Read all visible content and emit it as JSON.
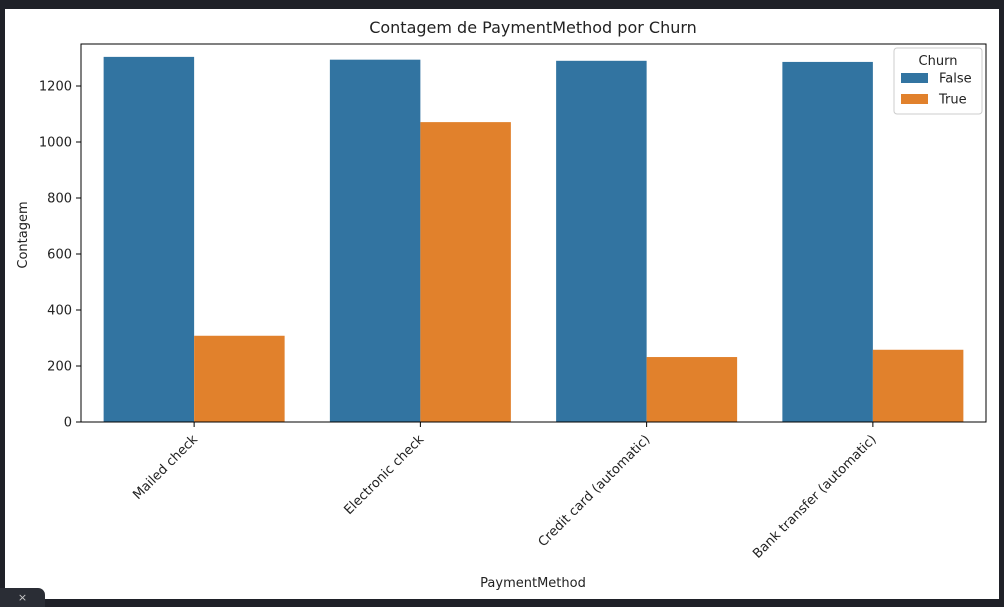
{
  "chart_data": {
    "type": "bar",
    "title": "Contagem de PaymentMethod por Churn",
    "xlabel": "PaymentMethod",
    "ylabel": "Contagem",
    "categories": [
      "Mailed check",
      "Electronic check",
      "Credit card (automatic)",
      "Bank transfer (automatic)"
    ],
    "series": [
      {
        "name": "False",
        "values": [
          1304,
          1294,
          1290,
          1286
        ],
        "color": "#3274a1"
      },
      {
        "name": "True",
        "values": [
          308,
          1071,
          232,
          258
        ],
        "color": "#e1812c"
      }
    ],
    "ylim": [
      0,
      1350
    ],
    "yticks": [
      0,
      200,
      400,
      600,
      800,
      1000,
      1200
    ],
    "legend": {
      "title": "Churn",
      "placement": "upper right"
    },
    "grid": false
  },
  "ui": {
    "close_glyph": "×"
  }
}
